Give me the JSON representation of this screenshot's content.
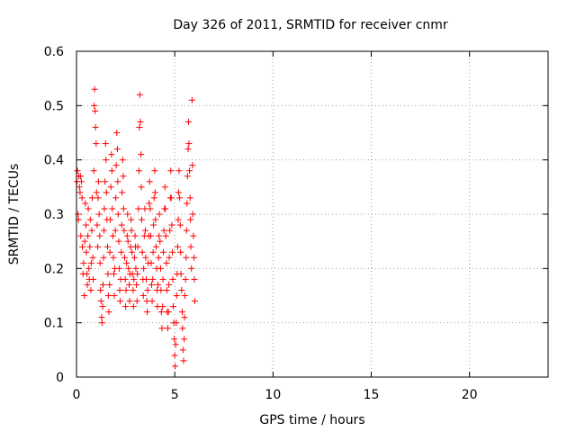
{
  "chart_data": {
    "type": "scatter",
    "title": "Day 326 of 2011, SRMTID for receiver cnmr",
    "xlabel": "GPS time / hours",
    "ylabel": "SRMTID / TECUs",
    "xlim": [
      0,
      24
    ],
    "ylim": [
      0,
      0.6
    ],
    "xticks": [
      0,
      5,
      10,
      15,
      20
    ],
    "yticks": [
      0,
      0.1,
      0.2,
      0.3,
      0.4,
      0.5,
      0.6
    ],
    "xtick_labels": [
      "0",
      "5",
      "10",
      "15",
      "20"
    ],
    "ytick_labels": [
      "0",
      "0.1",
      "0.2",
      "0.3",
      "0.4",
      "0.5",
      "0.6"
    ],
    "grid": true,
    "marker": "+",
    "series": [
      {
        "color": "#ff0000",
        "points": [
          [
            0.02,
            0.36
          ],
          [
            0.05,
            0.38
          ],
          [
            0.08,
            0.3
          ],
          [
            0.1,
            0.29
          ],
          [
            0.12,
            0.37
          ],
          [
            0.15,
            0.35
          ],
          [
            0.18,
            0.34
          ],
          [
            0.2,
            0.37
          ],
          [
            0.22,
            0.26
          ],
          [
            0.25,
            0.36
          ],
          [
            0.28,
            0.33
          ],
          [
            0.3,
            0.24
          ],
          [
            0.33,
            0.19
          ],
          [
            0.36,
            0.21
          ],
          [
            0.4,
            0.15
          ],
          [
            0.42,
            0.25
          ],
          [
            0.45,
            0.32
          ],
          [
            0.48,
            0.28
          ],
          [
            0.5,
            0.23
          ],
          [
            0.53,
            0.19
          ],
          [
            0.55,
            0.17
          ],
          [
            0.58,
            0.26
          ],
          [
            0.6,
            0.31
          ],
          [
            0.63,
            0.2
          ],
          [
            0.65,
            0.18
          ],
          [
            0.68,
            0.24
          ],
          [
            0.7,
            0.29
          ],
          [
            0.73,
            0.16
          ],
          [
            0.75,
            0.21
          ],
          [
            0.78,
            0.27
          ],
          [
            0.8,
            0.33
          ],
          [
            0.83,
            0.22
          ],
          [
            0.85,
            0.18
          ],
          [
            0.88,
            0.38
          ],
          [
            0.9,
            0.5
          ],
          [
            0.92,
            0.53
          ],
          [
            0.95,
            0.49
          ],
          [
            0.97,
            0.46
          ],
          [
            1.0,
            0.43
          ],
          [
            1.02,
            0.34
          ],
          [
            1.05,
            0.28
          ],
          [
            1.08,
            0.24
          ],
          [
            1.1,
            0.33
          ],
          [
            1.12,
            0.36
          ],
          [
            1.15,
            0.3
          ],
          [
            1.18,
            0.26
          ],
          [
            1.2,
            0.21
          ],
          [
            1.22,
            0.16
          ],
          [
            1.25,
            0.14
          ],
          [
            1.28,
            0.11
          ],
          [
            1.3,
            0.1
          ],
          [
            1.33,
            0.13
          ],
          [
            1.35,
            0.17
          ],
          [
            1.38,
            0.22
          ],
          [
            1.4,
            0.27
          ],
          [
            1.42,
            0.31
          ],
          [
            1.45,
            0.36
          ],
          [
            1.48,
            0.43
          ],
          [
            1.5,
            0.4
          ],
          [
            1.52,
            0.34
          ],
          [
            1.55,
            0.29
          ],
          [
            1.58,
            0.24
          ],
          [
            1.6,
            0.19
          ],
          [
            1.62,
            0.15
          ],
          [
            1.65,
            0.12
          ],
          [
            1.68,
            0.17
          ],
          [
            1.7,
            0.23
          ],
          [
            1.72,
            0.29
          ],
          [
            1.75,
            0.35
          ],
          [
            1.78,
            0.41
          ],
          [
            1.8,
            0.38
          ],
          [
            1.82,
            0.31
          ],
          [
            1.85,
            0.26
          ],
          [
            1.88,
            0.22
          ],
          [
            1.9,
            0.19
          ],
          [
            1.92,
            0.15
          ],
          [
            1.95,
            0.2
          ],
          [
            1.98,
            0.27
          ],
          [
            2.0,
            0.33
          ],
          [
            2.02,
            0.39
          ],
          [
            2.05,
            0.45
          ],
          [
            2.08,
            0.42
          ],
          [
            2.1,
            0.36
          ],
          [
            2.12,
            0.3
          ],
          [
            2.15,
            0.25
          ],
          [
            2.18,
            0.2
          ],
          [
            2.2,
            0.16
          ],
          [
            2.22,
            0.14
          ],
          [
            2.25,
            0.18
          ],
          [
            2.28,
            0.23
          ],
          [
            2.3,
            0.28
          ],
          [
            2.32,
            0.34
          ],
          [
            2.35,
            0.4
          ],
          [
            2.38,
            0.37
          ],
          [
            2.4,
            0.31
          ],
          [
            2.42,
            0.27
          ],
          [
            2.45,
            0.22
          ],
          [
            2.48,
            0.18
          ],
          [
            2.5,
            0.13
          ],
          [
            2.52,
            0.16
          ],
          [
            2.55,
            0.21
          ],
          [
            2.58,
            0.26
          ],
          [
            2.6,
            0.3
          ],
          [
            2.62,
            0.25
          ],
          [
            2.65,
            0.2
          ],
          [
            2.68,
            0.17
          ],
          [
            2.7,
            0.14
          ],
          [
            2.72,
            0.19
          ],
          [
            2.75,
            0.24
          ],
          [
            2.78,
            0.29
          ],
          [
            2.8,
            0.27
          ],
          [
            2.82,
            0.23
          ],
          [
            2.85,
            0.19
          ],
          [
            2.88,
            0.16
          ],
          [
            2.9,
            0.13
          ],
          [
            2.92,
            0.18
          ],
          [
            2.95,
            0.22
          ],
          [
            2.98,
            0.26
          ],
          [
            3.0,
            0.24
          ],
          [
            3.02,
            0.2
          ],
          [
            3.05,
            0.17
          ],
          [
            3.08,
            0.14
          ],
          [
            3.1,
            0.19
          ],
          [
            3.12,
            0.24
          ],
          [
            3.15,
            0.31
          ],
          [
            3.18,
            0.38
          ],
          [
            3.2,
            0.46
          ],
          [
            3.22,
            0.52
          ],
          [
            3.25,
            0.47
          ],
          [
            3.28,
            0.41
          ],
          [
            3.3,
            0.35
          ],
          [
            3.32,
            0.29
          ],
          [
            3.35,
            0.23
          ],
          [
            3.38,
            0.18
          ],
          [
            3.4,
            0.15
          ],
          [
            3.42,
            0.2
          ],
          [
            3.45,
            0.26
          ],
          [
            3.48,
            0.31
          ],
          [
            3.5,
            0.27
          ],
          [
            3.52,
            0.22
          ],
          [
            3.55,
            0.18
          ],
          [
            3.58,
            0.14
          ],
          [
            3.6,
            0.12
          ],
          [
            3.62,
            0.16
          ],
          [
            3.65,
            0.21
          ],
          [
            3.68,
            0.26
          ],
          [
            3.7,
            0.32
          ],
          [
            3.72,
            0.36
          ],
          [
            3.75,
            0.31
          ],
          [
            3.78,
            0.26
          ],
          [
            3.8,
            0.21
          ],
          [
            3.82,
            0.17
          ],
          [
            3.85,
            0.14
          ],
          [
            3.88,
            0.18
          ],
          [
            3.9,
            0.23
          ],
          [
            3.92,
            0.28
          ],
          [
            3.95,
            0.33
          ],
          [
            3.98,
            0.38
          ],
          [
            4.0,
            0.34
          ],
          [
            4.02,
            0.29
          ],
          [
            4.05,
            0.24
          ],
          [
            4.08,
            0.2
          ],
          [
            4.1,
            0.16
          ],
          [
            4.12,
            0.13
          ],
          [
            4.15,
            0.17
          ],
          [
            4.18,
            0.22
          ],
          [
            4.2,
            0.26
          ],
          [
            4.22,
            0.3
          ],
          [
            4.25,
            0.25
          ],
          [
            4.28,
            0.2
          ],
          [
            4.3,
            0.16
          ],
          [
            4.32,
            0.12
          ],
          [
            4.35,
            0.09
          ],
          [
            4.38,
            0.13
          ],
          [
            4.4,
            0.18
          ],
          [
            4.42,
            0.23
          ],
          [
            4.45,
            0.27
          ],
          [
            4.48,
            0.31
          ],
          [
            4.5,
            0.35
          ],
          [
            4.52,
            0.31
          ],
          [
            4.55,
            0.26
          ],
          [
            4.58,
            0.21
          ],
          [
            4.6,
            0.16
          ],
          [
            4.62,
            0.12
          ],
          [
            4.65,
            0.09
          ],
          [
            4.68,
            0.12
          ],
          [
            4.7,
            0.17
          ],
          [
            4.72,
            0.22
          ],
          [
            4.75,
            0.27
          ],
          [
            4.78,
            0.33
          ],
          [
            4.8,
            0.38
          ],
          [
            4.82,
            0.33
          ],
          [
            4.85,
            0.28
          ],
          [
            4.88,
            0.23
          ],
          [
            4.9,
            0.18
          ],
          [
            4.92,
            0.13
          ],
          [
            4.95,
            0.1
          ],
          [
            4.98,
            0.07
          ],
          [
            5.0,
            0.04
          ],
          [
            5.02,
            0.02
          ],
          [
            5.05,
            0.06
          ],
          [
            5.08,
            0.1
          ],
          [
            5.1,
            0.15
          ],
          [
            5.12,
            0.19
          ],
          [
            5.15,
            0.24
          ],
          [
            5.18,
            0.29
          ],
          [
            5.2,
            0.34
          ],
          [
            5.22,
            0.38
          ],
          [
            5.25,
            0.33
          ],
          [
            5.28,
            0.28
          ],
          [
            5.3,
            0.23
          ],
          [
            5.32,
            0.19
          ],
          [
            5.35,
            0.16
          ],
          [
            5.38,
            0.12
          ],
          [
            5.4,
            0.09
          ],
          [
            5.42,
            0.05
          ],
          [
            5.45,
            0.03
          ],
          [
            5.48,
            0.07
          ],
          [
            5.5,
            0.11
          ],
          [
            5.52,
            0.15
          ],
          [
            5.55,
            0.18
          ],
          [
            5.58,
            0.22
          ],
          [
            5.6,
            0.27
          ],
          [
            5.62,
            0.32
          ],
          [
            5.65,
            0.37
          ],
          [
            5.68,
            0.42
          ],
          [
            5.7,
            0.47
          ],
          [
            5.72,
            0.43
          ],
          [
            5.75,
            0.38
          ],
          [
            5.78,
            0.33
          ],
          [
            5.8,
            0.29
          ],
          [
            5.82,
            0.24
          ],
          [
            5.85,
            0.2
          ],
          [
            5.88,
            0.51
          ],
          [
            5.9,
            0.39
          ],
          [
            5.92,
            0.3
          ],
          [
            5.95,
            0.26
          ],
          [
            5.98,
            0.22
          ],
          [
            6.0,
            0.18
          ],
          [
            6.02,
            0.14
          ]
        ]
      }
    ]
  }
}
